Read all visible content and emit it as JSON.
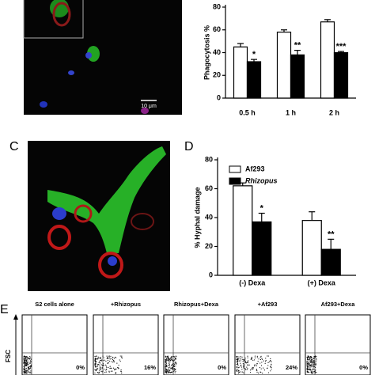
{
  "panel_labels": [
    "C",
    "D",
    "E"
  ],
  "scale_bar": "10 μm",
  "chart_data": [
    {
      "type": "bar",
      "y_label": "Phagocytosis %",
      "categories": [
        "0.5 h",
        "1 h",
        "2 h"
      ],
      "series": [
        {
          "color": "#ffffff",
          "values": [
            45,
            58,
            67
          ],
          "errors": [
            3,
            2,
            2
          ]
        },
        {
          "color": "#000000",
          "values": [
            32,
            38,
            40
          ],
          "errors": [
            2,
            4,
            1
          ],
          "annotations": [
            "*",
            "**",
            "***"
          ]
        }
      ],
      "ylim": [
        0,
        80
      ],
      "yticks": [
        0,
        20,
        40,
        60,
        80
      ]
    },
    {
      "type": "bar",
      "y_label": "% Hyphal damage",
      "categories": [
        "(-) Dexa",
        "(+) Dexa"
      ],
      "series": [
        {
          "name": "Af293",
          "color": "#ffffff",
          "values": [
            62,
            38
          ],
          "errors": [
            2,
            6
          ]
        },
        {
          "name": "Rhizopus",
          "color": "#000000",
          "values": [
            37,
            18
          ],
          "errors": [
            6,
            7
          ],
          "annotations": [
            "*",
            "**"
          ]
        }
      ],
      "ylim": [
        0,
        80
      ],
      "yticks": [
        0,
        20,
        40,
        60,
        80
      ]
    }
  ],
  "flow": {
    "y_label": "FSC",
    "panels": [
      {
        "title": "S2 cells alone",
        "percent": "0%"
      },
      {
        "title": "+Rhizopus",
        "percent": "16%"
      },
      {
        "title": "Rhizopus+Dexa",
        "percent": "0%"
      },
      {
        "title": "+Af293",
        "percent": "24%"
      },
      {
        "title": "Af293+Dexa",
        "percent": "0%"
      }
    ]
  }
}
